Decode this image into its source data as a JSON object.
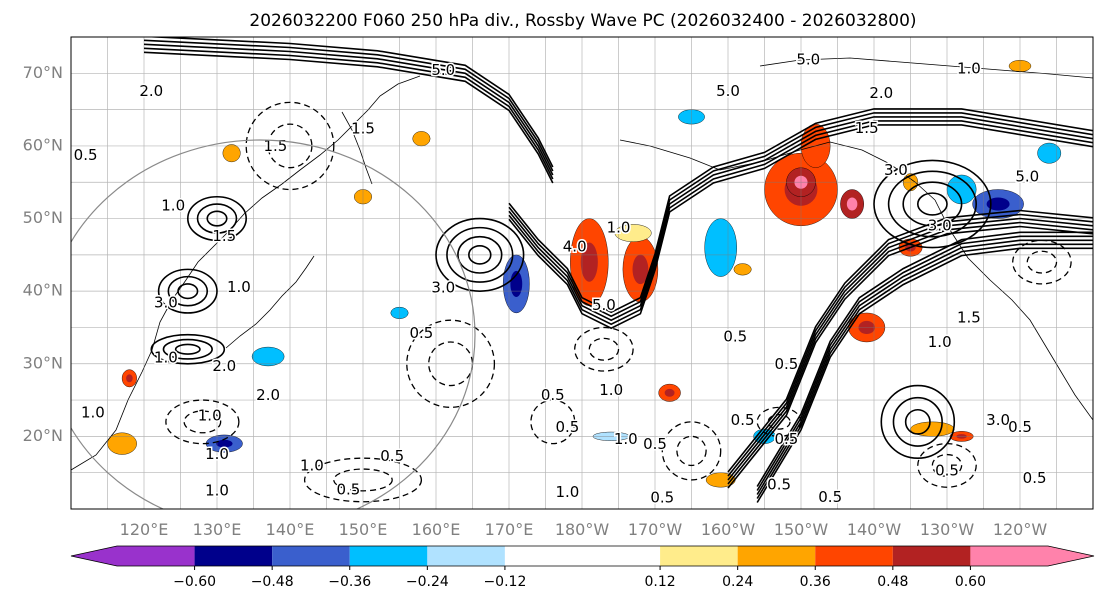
{
  "chart_data": {
    "type": "contour",
    "title": "2026032200 F060 250 hPa div., Rossby Wave PC (2026032400 - 2026032800)",
    "map": {
      "lon_range": [
        110,
        250
      ],
      "lat_range": [
        10,
        75
      ],
      "x_ticks": [
        {
          "lon": 120,
          "label": "120°E"
        },
        {
          "lon": 130,
          "label": "130°E"
        },
        {
          "lon": 140,
          "label": "140°E"
        },
        {
          "lon": 150,
          "label": "150°E"
        },
        {
          "lon": 160,
          "label": "160°E"
        },
        {
          "lon": 170,
          "label": "170°E"
        },
        {
          "lon": 180,
          "label": "180°W"
        },
        {
          "lon": 190,
          "label": "170°W"
        },
        {
          "lon": 200,
          "label": "160°W"
        },
        {
          "lon": 210,
          "label": "150°W"
        },
        {
          "lon": 220,
          "label": "140°W"
        },
        {
          "lon": 230,
          "label": "130°W"
        },
        {
          "lon": 240,
          "label": "120°W"
        }
      ],
      "y_ticks": [
        {
          "lat": 20,
          "label": "20°N"
        },
        {
          "lat": 30,
          "label": "30°N"
        },
        {
          "lat": 40,
          "label": "40°N"
        },
        {
          "lat": 50,
          "label": "50°N"
        },
        {
          "lat": 60,
          "label": "60°N"
        },
        {
          "lat": 70,
          "label": "70°N"
        }
      ],
      "grid": true
    },
    "colorbar": {
      "ticks": [
        {
          "value": -0.6,
          "label": "−0.60"
        },
        {
          "value": -0.48,
          "label": "−0.48"
        },
        {
          "value": -0.36,
          "label": "−0.36"
        },
        {
          "value": -0.24,
          "label": "−0.24"
        },
        {
          "value": -0.12,
          "label": "−0.12"
        },
        {
          "value": 0.12,
          "label": "0.12"
        },
        {
          "value": 0.24,
          "label": "0.24"
        },
        {
          "value": 0.36,
          "label": "0.36"
        },
        {
          "value": 0.48,
          "label": "0.48"
        },
        {
          "value": 0.6,
          "label": "0.60"
        }
      ],
      "bins": [
        {
          "from": null,
          "to": -0.72,
          "color": "#9932cc"
        },
        {
          "from": -0.72,
          "to": -0.6,
          "color": "#9932cc"
        },
        {
          "from": -0.6,
          "to": -0.48,
          "color": "#00008b"
        },
        {
          "from": -0.48,
          "to": -0.36,
          "color": "#3a5fcd"
        },
        {
          "from": -0.36,
          "to": -0.24,
          "color": "#00bfff"
        },
        {
          "from": -0.24,
          "to": -0.12,
          "color": "#b0e2ff"
        },
        {
          "from": -0.12,
          "to": 0.12,
          "color": "#ffffff"
        },
        {
          "from": 0.12,
          "to": 0.24,
          "color": "#ffec8b"
        },
        {
          "from": 0.24,
          "to": 0.36,
          "color": "#ffa500"
        },
        {
          "from": 0.36,
          "to": 0.48,
          "color": "#ff4500"
        },
        {
          "from": 0.48,
          "to": 0.6,
          "color": "#b22222"
        },
        {
          "from": 0.6,
          "to": 0.72,
          "color": "#ff82ab"
        },
        {
          "from": 0.72,
          "to": null,
          "color": "#ff82ab"
        }
      ]
    },
    "shaded_features": [
      {
        "lon": 181,
        "lat": 44,
        "rlon": 2.6,
        "rlat": 6,
        "level": 0.42
      },
      {
        "lon": 188,
        "lat": 43,
        "rlon": 2.4,
        "rlat": 4.5,
        "level": 0.42
      },
      {
        "lon": 210,
        "lat": 54,
        "rlon": 5,
        "rlat": 5,
        "level": 0.42
      },
      {
        "lon": 212,
        "lat": 60,
        "rlon": 2,
        "rlat": 3,
        "level": 0.36
      },
      {
        "lon": 217,
        "lat": 52,
        "rlon": 1.6,
        "rlat": 2,
        "level": 0.54
      },
      {
        "lon": 219,
        "lat": 35,
        "rlon": 2.5,
        "rlat": 2,
        "level": 0.42
      },
      {
        "lon": 225,
        "lat": 46,
        "rlon": 1.6,
        "rlat": 1.2,
        "level": 0.42
      },
      {
        "lon": 171,
        "lat": 41,
        "rlon": 1.8,
        "rlat": 4,
        "level": -0.42
      },
      {
        "lon": 199,
        "lat": 46,
        "rlon": 2.2,
        "rlat": 4,
        "level": -0.3
      },
      {
        "lon": 237,
        "lat": 52,
        "rlon": 3.5,
        "rlat": 2,
        "level": -0.42
      },
      {
        "lon": 232,
        "lat": 54,
        "rlon": 2,
        "rlat": 2,
        "level": -0.3
      },
      {
        "lon": 117,
        "lat": 19,
        "rlon": 2,
        "rlat": 1.5,
        "level": 0.3
      },
      {
        "lon": 131,
        "lat": 19,
        "rlon": 2.5,
        "rlat": 1.2,
        "level": -0.42
      },
      {
        "lon": 137,
        "lat": 31,
        "rlon": 2.2,
        "rlat": 1.3,
        "level": -0.3
      },
      {
        "lon": 118,
        "lat": 28,
        "rlon": 1,
        "rlat": 1.2,
        "level": 0.42
      },
      {
        "lon": 150,
        "lat": 53,
        "rlon": 1.2,
        "rlat": 1,
        "level": 0.3
      },
      {
        "lon": 158,
        "lat": 61,
        "rlon": 1.2,
        "rlat": 1,
        "level": 0.3
      },
      {
        "lon": 187,
        "lat": 48,
        "rlon": 2.5,
        "rlat": 1.2,
        "level": 0.18
      },
      {
        "lon": 195,
        "lat": 64,
        "rlon": 1.8,
        "rlat": 1,
        "level": -0.3
      },
      {
        "lon": 192,
        "lat": 26,
        "rlon": 1.5,
        "rlat": 1.2,
        "level": 0.42
      },
      {
        "lon": 199,
        "lat": 14,
        "rlon": 2,
        "rlat": 1,
        "level": 0.3
      },
      {
        "lon": 205,
        "lat": 20,
        "rlon": 1.5,
        "rlat": 1,
        "level": -0.3
      },
      {
        "lon": 228,
        "lat": 21,
        "rlon": 3,
        "rlat": 1,
        "level": 0.3
      },
      {
        "lon": 232,
        "lat": 20,
        "rlon": 1.6,
        "rlat": 0.7,
        "level": 0.42
      },
      {
        "lon": 184,
        "lat": 20,
        "rlon": 2.5,
        "rlat": 0.6,
        "level": -0.24
      },
      {
        "lon": 240,
        "lat": 71,
        "rlon": 1.5,
        "rlat": 0.8,
        "level": 0.3
      },
      {
        "lon": 210,
        "lat": 55,
        "rlon": 2,
        "rlat": 2,
        "level": 0.54
      },
      {
        "lon": 132,
        "lat": 59,
        "rlon": 1.2,
        "rlat": 1.2,
        "level": 0.3
      },
      {
        "lon": 155,
        "lat": 37,
        "rlon": 1.2,
        "rlat": 0.8,
        "level": -0.3
      },
      {
        "lon": 244,
        "lat": 59,
        "rlon": 1.6,
        "rlat": 1.4,
        "level": -0.3
      },
      {
        "lon": 202,
        "lat": 43,
        "rlon": 1.2,
        "rlat": 0.8,
        "level": 0.3
      },
      {
        "lon": 225,
        "lat": 55,
        "rlon": 1,
        "rlat": 1.2,
        "level": 0.3
      }
    ],
    "contours": [
      {
        "lon": 130,
        "lat": 50,
        "rlon": 4,
        "rlat": 3,
        "n": 3,
        "style": "solid",
        "label": "1.5"
      },
      {
        "lon": 166,
        "lat": 45,
        "rlon": 6,
        "rlat": 5,
        "n": 4,
        "style": "solid",
        "label": "3.0"
      },
      {
        "lon": 162,
        "lat": 30,
        "rlon": 6,
        "rlat": 6,
        "n": 2,
        "style": "dashed",
        "label": "2.0"
      },
      {
        "lon": 228,
        "lat": 52,
        "rlon": 8,
        "rlat": 6,
        "n": 4,
        "style": "solid",
        "label": "3.0"
      },
      {
        "lon": 226,
        "lat": 22,
        "rlon": 5,
        "rlat": 5,
        "n": 3,
        "style": "solid",
        "label": "3.0"
      },
      {
        "lon": 183,
        "lat": 32,
        "rlon": 4,
        "rlat": 3,
        "n": 2,
        "style": "dashed",
        "label": "1.0"
      },
      {
        "lon": 128,
        "lat": 22,
        "rlon": 5,
        "rlat": 3,
        "n": 2,
        "style": "dashed",
        "label": "1.0"
      },
      {
        "lon": 126,
        "lat": 40,
        "rlon": 4,
        "rlat": 3,
        "n": 3,
        "style": "solid",
        "label": "2.0"
      },
      {
        "lon": 126,
        "lat": 32,
        "rlon": 5,
        "rlat": 2,
        "n": 3,
        "style": "solid",
        "label": "2.0"
      },
      {
        "lon": 195,
        "lat": 18,
        "rlon": 4,
        "rlat": 4,
        "n": 2,
        "style": "dashed",
        "label": "0.5"
      },
      {
        "lon": 243,
        "lat": 44,
        "rlon": 4,
        "rlat": 3,
        "n": 2,
        "style": "dashed",
        "label": "1.0"
      },
      {
        "lon": 207,
        "lat": 22,
        "rlon": 3,
        "rlat": 2,
        "n": 2,
        "style": "dashed",
        "label": "0.5"
      },
      {
        "lon": 230,
        "lat": 16,
        "rlon": 4,
        "rlat": 3,
        "n": 2,
        "style": "dashed",
        "label": "0.5"
      },
      {
        "lon": 150,
        "lat": 14,
        "rlon": 8,
        "rlat": 3,
        "n": 2,
        "style": "dashed",
        "label": "1.0"
      },
      {
        "lon": 140,
        "lat": 60,
        "rlon": 6,
        "rlat": 6,
        "n": 2,
        "style": "dashed",
        "label": "2.0"
      },
      {
        "lon": 176,
        "lat": 22,
        "rlon": 3,
        "rlat": 3,
        "n": 1,
        "style": "dashed",
        "label": "0.5"
      }
    ],
    "jet_streams": [
      [
        [
          120,
          74
        ],
        [
          140,
          73
        ],
        [
          152,
          72
        ],
        [
          164,
          70
        ],
        [
          170,
          66
        ],
        [
          174,
          60
        ],
        [
          176,
          56
        ]
      ],
      [
        [
          170,
          51
        ],
        [
          174,
          46
        ],
        [
          178,
          42
        ],
        [
          180,
          38
        ],
        [
          184,
          36
        ],
        [
          188,
          38
        ],
        [
          190,
          44
        ],
        [
          192,
          52
        ],
        [
          198,
          56
        ],
        [
          205,
          58
        ],
        [
          212,
          62
        ],
        [
          220,
          64
        ],
        [
          232,
          64
        ],
        [
          250,
          61
        ]
      ],
      [
        [
          204,
          12
        ],
        [
          210,
          22
        ],
        [
          214,
          32
        ],
        [
          218,
          38
        ],
        [
          224,
          42
        ],
        [
          232,
          46
        ],
        [
          240,
          47
        ],
        [
          250,
          47
        ]
      ],
      [
        [
          200,
          14
        ],
        [
          208,
          24
        ],
        [
          212,
          34
        ],
        [
          216,
          40
        ],
        [
          222,
          46
        ],
        [
          230,
          49
        ],
        [
          240,
          50
        ],
        [
          250,
          49
        ]
      ]
    ],
    "contour_labels": [
      {
        "lon": 112,
        "lat": 58.7,
        "text": "0.5"
      },
      {
        "lon": 121,
        "lat": 67.5,
        "text": "2.0"
      },
      {
        "lon": 124,
        "lat": 51.7,
        "text": "1.0"
      },
      {
        "lon": 131,
        "lat": 47.5,
        "text": "1.5"
      },
      {
        "lon": 133,
        "lat": 40.5,
        "text": "1.0"
      },
      {
        "lon": 123,
        "lat": 38.4,
        "text": "3.0"
      },
      {
        "lon": 123,
        "lat": 30.8,
        "text": "1.0"
      },
      {
        "lon": 131,
        "lat": 29.6,
        "text": "2.0"
      },
      {
        "lon": 137,
        "lat": 25.6,
        "text": "2.0"
      },
      {
        "lon": 129,
        "lat": 22.8,
        "text": "1.0"
      },
      {
        "lon": 113,
        "lat": 23.2,
        "text": "1.0"
      },
      {
        "lon": 138,
        "lat": 59.9,
        "text": "1.5"
      },
      {
        "lon": 150,
        "lat": 62.3,
        "text": "1.5"
      },
      {
        "lon": 161,
        "lat": 70.4,
        "text": "5.0"
      },
      {
        "lon": 161,
        "lat": 40.4,
        "text": "3.0"
      },
      {
        "lon": 158,
        "lat": 34.2,
        "text": "0.5"
      },
      {
        "lon": 176,
        "lat": 25.6,
        "text": "0.5"
      },
      {
        "lon": 178,
        "lat": 21.2,
        "text": "0.5"
      },
      {
        "lon": 186,
        "lat": 19.6,
        "text": "1.0"
      },
      {
        "lon": 184,
        "lat": 26.3,
        "text": "1.0"
      },
      {
        "lon": 185,
        "lat": 48.7,
        "text": "1.0"
      },
      {
        "lon": 179,
        "lat": 46.1,
        "text": "4.0"
      },
      {
        "lon": 183,
        "lat": 38,
        "text": "5.0"
      },
      {
        "lon": 200,
        "lat": 67.5,
        "text": "5.0"
      },
      {
        "lon": 211,
        "lat": 71.8,
        "text": "5.0"
      },
      {
        "lon": 221,
        "lat": 67.2,
        "text": "2.0"
      },
      {
        "lon": 219,
        "lat": 62.4,
        "text": "1.5"
      },
      {
        "lon": 223,
        "lat": 56.6,
        "text": "3.0"
      },
      {
        "lon": 229,
        "lat": 49,
        "text": "3.0"
      },
      {
        "lon": 241,
        "lat": 55.7,
        "text": "5.0"
      },
      {
        "lon": 233,
        "lat": 70.6,
        "text": "1.0"
      },
      {
        "lon": 233,
        "lat": 36.3,
        "text": "1.5"
      },
      {
        "lon": 229,
        "lat": 32.9,
        "text": "1.0"
      },
      {
        "lon": 201,
        "lat": 33.7,
        "text": "0.5"
      },
      {
        "lon": 208,
        "lat": 29.9,
        "text": "0.5"
      },
      {
        "lon": 207,
        "lat": 13.3,
        "text": "0.5"
      },
      {
        "lon": 214,
        "lat": 11.6,
        "text": "0.5"
      },
      {
        "lon": 230,
        "lat": 15.2,
        "text": "0.5"
      },
      {
        "lon": 242,
        "lat": 14.2,
        "text": "0.5"
      },
      {
        "lon": 237,
        "lat": 22.2,
        "text": "3.0"
      },
      {
        "lon": 240,
        "lat": 21.2,
        "text": "0.5"
      },
      {
        "lon": 202,
        "lat": 22.2,
        "text": "0.5"
      },
      {
        "lon": 208,
        "lat": 19.6,
        "text": "0.5"
      },
      {
        "lon": 190,
        "lat": 18.9,
        "text": "0.5"
      },
      {
        "lon": 154,
        "lat": 17.2,
        "text": "0.5"
      },
      {
        "lon": 143,
        "lat": 15.9,
        "text": "1.0"
      },
      {
        "lon": 148,
        "lat": 12.6,
        "text": "0.5"
      },
      {
        "lon": 130,
        "lat": 17.5,
        "text": "1.0"
      },
      {
        "lon": 130,
        "lat": 12.5,
        "text": "1.0"
      },
      {
        "lon": 191,
        "lat": 11.5,
        "text": "0.5"
      },
      {
        "lon": 178,
        "lat": 12.3,
        "text": "1.0"
      }
    ]
  }
}
